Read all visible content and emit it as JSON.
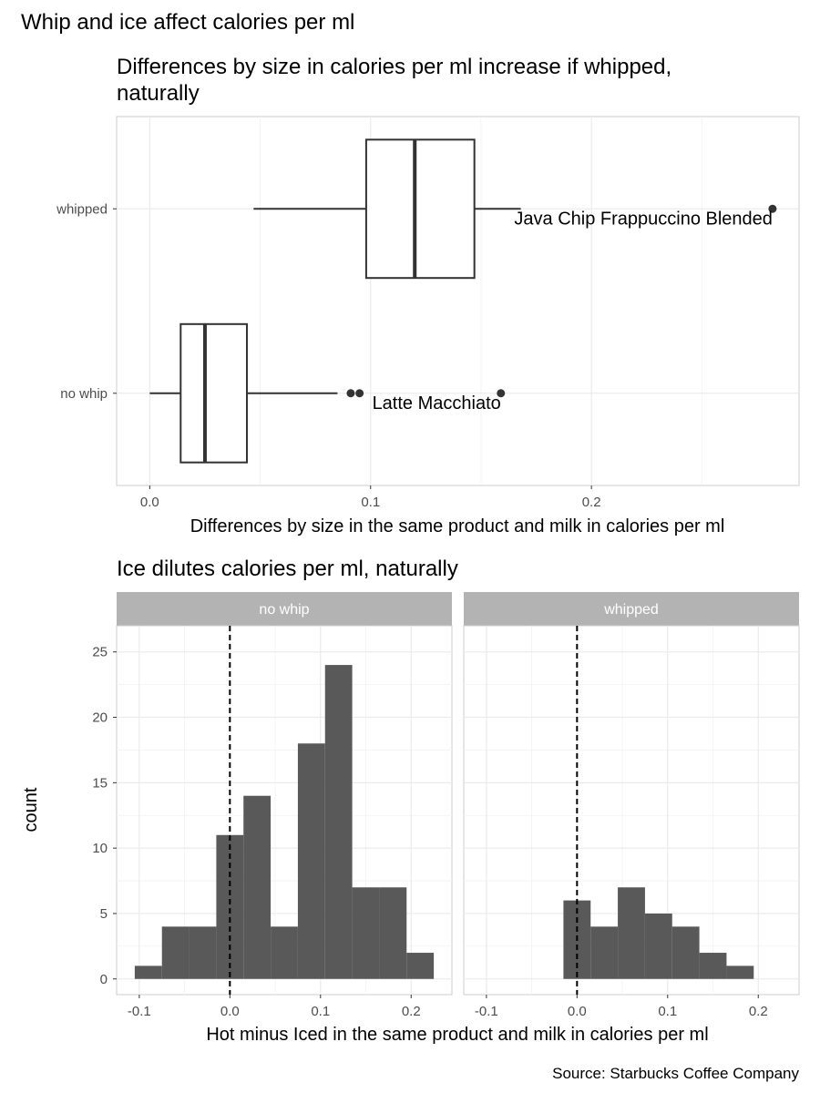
{
  "figure": {
    "title": "Whip and ice affect calories per ml",
    "caption": "Source: Starbucks Coffee Company"
  },
  "chart_data": [
    {
      "type": "boxplot",
      "title": "Differences by size in calories per ml increase if whipped, naturally",
      "title_lines": [
        "Differences by size in calories per ml increase if whipped,",
        "naturally"
      ],
      "xlabel": "Differences by size in the same product and milk in calories per ml",
      "ylabel": "",
      "xlim": [
        -0.015,
        0.294
      ],
      "x_ticks": [
        0.0,
        0.1,
        0.2
      ],
      "x_tick_labels": [
        "0.0",
        "0.1",
        "0.2"
      ],
      "grid": true,
      "colors": {
        "box_fill": "#ffffff",
        "box_line": "#333333",
        "outlier": "#333333",
        "grid": "#ebebeb",
        "panel_border": "#cccccc"
      },
      "groups": [
        {
          "name": "whipped",
          "whisker_low": 0.047,
          "q1": 0.098,
          "median": 0.12,
          "q3": 0.147,
          "whisker_high": 0.168,
          "outliers": [
            0.282
          ],
          "annotations": [
            {
              "label": "Java Chip Frappuccino Blended",
              "x": 0.282
            }
          ]
        },
        {
          "name": "no whip",
          "whisker_low": 0.0,
          "q1": 0.014,
          "median": 0.025,
          "q3": 0.044,
          "whisker_high": 0.085,
          "outliers": [
            0.091,
            0.095,
            0.159
          ],
          "annotations": [
            {
              "label": "Latte Macchiato",
              "x": 0.159
            }
          ]
        }
      ]
    },
    {
      "type": "histogram",
      "title": "Ice dilutes calories per ml, naturally",
      "xlabel": "Hot minus Iced in the same product and milk in calories per ml",
      "ylabel": "count",
      "xlim": [
        -0.125,
        0.245
      ],
      "ylim": [
        -1.2,
        27.0
      ],
      "x_ticks": [
        -0.1,
        0.0,
        0.1,
        0.2
      ],
      "x_tick_labels": [
        "-0.1",
        "0.0",
        "0.1",
        "0.2"
      ],
      "y_ticks": [
        0,
        5,
        10,
        15,
        20,
        25
      ],
      "y_tick_labels": [
        "0",
        "5",
        "10",
        "15",
        "20",
        "25"
      ],
      "reference_line": {
        "x": 0.0,
        "style": "dashed"
      },
      "grid": true,
      "colors": {
        "bar": "#595959",
        "strip": "#b3b3b3",
        "strip_text": "#ffffff",
        "grid": "#ebebeb"
      },
      "facets": [
        {
          "name": "no whip",
          "bins": [
            {
              "x0": -0.105,
              "x1": -0.075,
              "count": 1
            },
            {
              "x0": -0.075,
              "x1": -0.045,
              "count": 4
            },
            {
              "x0": -0.045,
              "x1": -0.015,
              "count": 4
            },
            {
              "x0": -0.015,
              "x1": 0.015,
              "count": 11
            },
            {
              "x0": 0.015,
              "x1": 0.045,
              "count": 14
            },
            {
              "x0": 0.045,
              "x1": 0.075,
              "count": 4
            },
            {
              "x0": 0.075,
              "x1": 0.105,
              "count": 18
            },
            {
              "x0": 0.105,
              "x1": 0.135,
              "count": 24
            },
            {
              "x0": 0.135,
              "x1": 0.165,
              "count": 7
            },
            {
              "x0": 0.165,
              "x1": 0.195,
              "count": 7
            },
            {
              "x0": 0.195,
              "x1": 0.225,
              "count": 2
            }
          ]
        },
        {
          "name": "whipped",
          "bins": [
            {
              "x0": -0.015,
              "x1": 0.015,
              "count": 6
            },
            {
              "x0": 0.015,
              "x1": 0.045,
              "count": 4
            },
            {
              "x0": 0.045,
              "x1": 0.075,
              "count": 7
            },
            {
              "x0": 0.075,
              "x1": 0.105,
              "count": 5
            },
            {
              "x0": 0.105,
              "x1": 0.135,
              "count": 4
            },
            {
              "x0": 0.135,
              "x1": 0.165,
              "count": 2
            },
            {
              "x0": 0.165,
              "x1": 0.195,
              "count": 1
            }
          ]
        }
      ]
    }
  ]
}
